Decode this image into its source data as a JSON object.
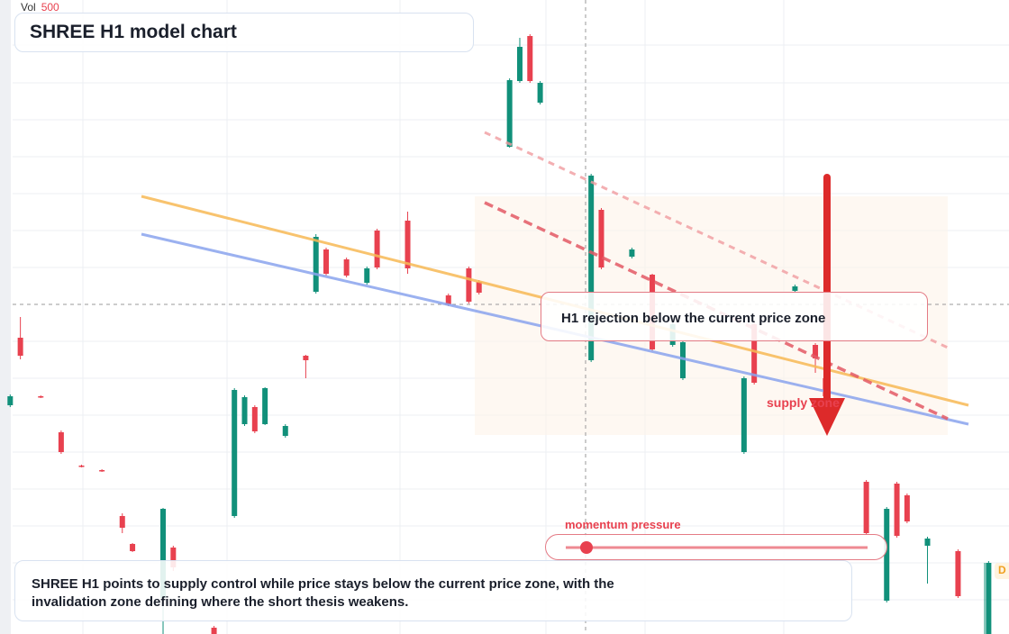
{
  "chart_data": {
    "type": "candlestick",
    "title": "SHREE H1 model chart",
    "volume_label": "Vol",
    "volume_value": "500",
    "annotation": "H1 rejection below the current price zone",
    "zone_label": "supply zone",
    "slider_label": "momentum pressure",
    "summary": "SHREE H1 points to supply control while price stays below the current price zone, with the invalidation zone defining where the short thesis weakens.",
    "edge_label": "D",
    "up_color": "#11907a",
    "down_color": "#e8414f",
    "xlim": [
      0,
      99
    ],
    "ylim": [
      0,
      704
    ],
    "x": [
      1,
      2,
      4,
      6,
      8,
      10,
      12,
      13,
      16,
      17,
      21,
      23,
      24,
      25,
      26,
      28,
      30,
      31,
      32,
      34,
      36,
      37,
      40,
      44,
      46,
      47,
      50,
      51,
      52,
      53,
      58,
      59,
      62,
      64,
      66,
      67,
      73,
      74,
      78,
      80,
      81,
      85,
      87,
      88,
      89,
      91,
      94,
      97
    ],
    "open": [
      254,
      329,
      264,
      224,
      187,
      182,
      131,
      100,
      40,
      96,
      7,
      131,
      233,
      252,
      233,
      220,
      309,
      380,
      427,
      416,
      390,
      448,
      459,
      376,
      406,
      391,
      541,
      614,
      664,
      590,
      304,
      471,
      419,
      399,
      321,
      284,
      202,
      344,
      381,
      321,
      284,
      169,
      37,
      167,
      154,
      98,
      92,
      0
    ],
    "high": [
      266,
      352,
      265,
      226,
      188,
      183,
      134,
      101,
      140,
      98,
      9,
      273,
      265,
      254,
      274,
      233,
      310,
      444,
      429,
      418,
      408,
      450,
      469,
      378,
      408,
      393,
      617,
      662,
      666,
      614,
      511,
      473,
      429,
      400,
      346,
      326,
      286,
      346,
      388,
      323,
      286,
      171,
      141,
      169,
      156,
      108,
      94,
      81
    ],
    "low": [
      252,
      305,
      262,
      200,
      185,
      180,
      112,
      91,
      0,
      70,
      0,
      129,
      231,
      223,
      232,
      218,
      284,
      378,
      398,
      396,
      388,
      405,
      400,
      364,
      367,
      377,
      540,
      612,
      612,
      588,
      302,
      405,
      417,
      314,
      319,
      282,
      200,
      277,
      379,
      290,
      262,
      110,
      35,
      107,
      123,
      56,
      40,
      0
    ],
    "close": [
      264,
      309,
      263,
      202,
      186,
      181,
      118,
      92,
      139,
      74,
      0,
      271,
      263,
      225,
      273,
      231,
      304,
      441,
      400,
      398,
      406,
      407,
      406,
      366,
      369,
      379,
      615,
      652,
      614,
      612,
      509,
      407,
      427,
      316,
      344,
      324,
      284,
      279,
      386,
      306,
      264,
      112,
      139,
      109,
      125,
      106,
      42,
      79
    ]
  }
}
